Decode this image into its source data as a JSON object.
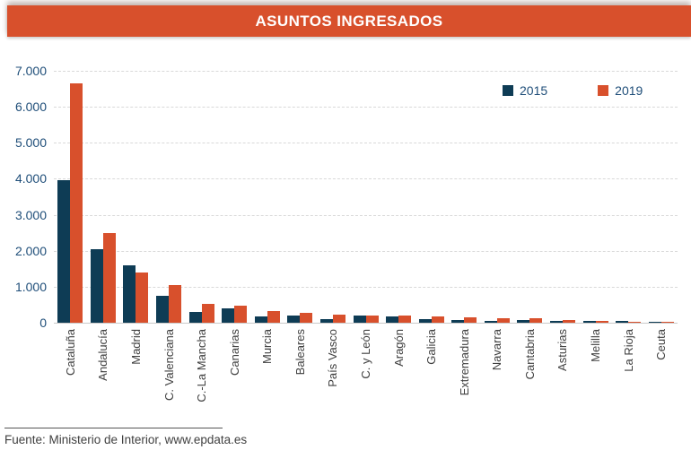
{
  "title": "ASUNTOS INGRESADOS",
  "source": "Fuente: Ministerio de Interior, www.epdata.es",
  "colors": {
    "accent_orange": "#d8502c",
    "navy": "#0e3c55",
    "axis_text": "#1f4e79",
    "category_text": "#404040",
    "grid": "#d9d9d9"
  },
  "legend": [
    {
      "label": "2015",
      "color": "#0e3c55"
    },
    {
      "label": "2019",
      "color": "#d8502c"
    }
  ],
  "chart_data": {
    "type": "bar",
    "title": "ASUNTOS INGRESADOS",
    "categories": [
      "Cataluña",
      "Andalucía",
      "Madrid",
      "C. Valenciana",
      "C.-La Mancha",
      "Canarias",
      "Murcia",
      "Baleares",
      "País Vasco",
      "C. y León",
      "Aragón",
      "Galicia",
      "Extremadura",
      "Navarra",
      "Cantabria",
      "Asturias",
      "Melilla",
      "La Rioja",
      "Ceuta"
    ],
    "series": [
      {
        "name": "2015",
        "color": "#0e3c55",
        "values": [
          3950,
          2050,
          1600,
          750,
          300,
          400,
          170,
          210,
          110,
          190,
          170,
          100,
          80,
          50,
          70,
          50,
          45,
          40,
          20
        ]
      },
      {
        "name": "2019",
        "color": "#d8502c",
        "values": [
          6650,
          2500,
          1400,
          1050,
          520,
          470,
          330,
          270,
          220,
          190,
          200,
          170,
          160,
          130,
          120,
          80,
          40,
          30,
          15
        ]
      }
    ],
    "xlabel": "",
    "ylabel": "",
    "ylim": [
      0,
      7000
    ],
    "ytick_step": 1000,
    "ytick_labels": [
      "0",
      "1.000",
      "2.000",
      "3.000",
      "4.000",
      "5.000",
      "6.000",
      "7.000"
    ],
    "grid": "dashed-horizontal",
    "legend_position": "top-right"
  }
}
